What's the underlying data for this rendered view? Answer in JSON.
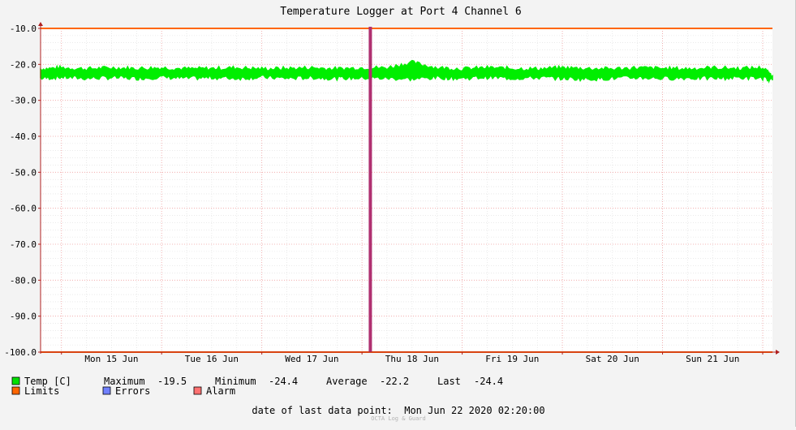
{
  "chart_data": {
    "type": "line",
    "title": "Temperature Logger at Port 4 Channel 6",
    "ylim": [
      -100,
      -10
    ],
    "yticks": [
      -10,
      -20,
      -30,
      -40,
      -50,
      -60,
      -70,
      -80,
      -90,
      -100
    ],
    "ytick_labels": [
      "-10.0",
      "-20.0",
      "-30.0",
      "-40.0",
      "-50.0",
      "-60.0",
      "-70.0",
      "-80.0",
      "-90.0",
      "-100.0"
    ],
    "x_start": "2020-06-14 19:00",
    "x_end": "2020-06-22 02:20",
    "xticks": [
      {
        "label": "Mon 15 Jun",
        "t": "2020-06-15 12:00"
      },
      {
        "label": "Tue 16 Jun",
        "t": "2020-06-16 12:00"
      },
      {
        "label": "Wed 17 Jun",
        "t": "2020-06-17 12:00"
      },
      {
        "label": "Thu 18 Jun",
        "t": "2020-06-18 12:00"
      },
      {
        "label": "Fri 19 Jun",
        "t": "2020-06-19 12:00"
      },
      {
        "label": "Sat 20 Jun",
        "t": "2020-06-20 12:00"
      },
      {
        "label": "Sun 21 Jun",
        "t": "2020-06-21 12:00"
      }
    ],
    "grid": true,
    "series": [
      {
        "name": "Temp [C]",
        "color": "#00ee00",
        "kind": "band",
        "x": [
          "2020-06-14 19:00",
          "2020-06-15 00:00",
          "2020-06-15 06:00",
          "2020-06-15 12:00",
          "2020-06-15 18:00",
          "2020-06-16 00:00",
          "2020-06-16 06:00",
          "2020-06-16 12:00",
          "2020-06-16 18:00",
          "2020-06-17 00:00",
          "2020-06-17 06:00",
          "2020-06-17 12:00",
          "2020-06-17 18:00",
          "2020-06-18 00:00",
          "2020-06-18 06:00",
          "2020-06-18 12:00",
          "2020-06-18 18:00",
          "2020-06-19 00:00",
          "2020-06-19 06:00",
          "2020-06-19 12:00",
          "2020-06-19 18:00",
          "2020-06-20 00:00",
          "2020-06-20 06:00",
          "2020-06-20 12:00",
          "2020-06-20 18:00",
          "2020-06-21 00:00",
          "2020-06-21 06:00",
          "2020-06-21 12:00",
          "2020-06-21 18:00",
          "2020-06-22 00:00",
          "2020-06-22 02:20"
        ],
        "high": [
          -21.3,
          -21.0,
          -21.3,
          -21.0,
          -21.2,
          -21.0,
          -21.3,
          -21.2,
          -21.0,
          -21.3,
          -21.2,
          -21.0,
          -21.3,
          -21.0,
          -21.0,
          -19.5,
          -21.0,
          -21.3,
          -21.0,
          -21.2,
          -21.3,
          -21.0,
          -21.2,
          -21.3,
          -21.0,
          -21.2,
          -21.3,
          -21.0,
          -21.2,
          -21.0,
          -23.2
        ],
        "low": [
          -23.8,
          -23.5,
          -23.8,
          -23.6,
          -23.8,
          -23.5,
          -23.8,
          -23.6,
          -23.8,
          -23.5,
          -23.8,
          -23.6,
          -23.8,
          -23.7,
          -23.8,
          -24.0,
          -23.6,
          -23.8,
          -23.5,
          -23.8,
          -23.6,
          -23.8,
          -24.0,
          -23.8,
          -23.6,
          -23.8,
          -23.7,
          -23.8,
          -23.6,
          -23.8,
          -24.4
        ]
      },
      {
        "name": "Limits",
        "color": "#ff6600",
        "kind": "hline",
        "values": [
          -10,
          -100
        ]
      },
      {
        "name": "Alarm",
        "color": "#b03070",
        "kind": "vbar",
        "x": [
          "2020-06-18 02:00"
        ]
      }
    ],
    "legend": [
      {
        "label": "Temp [C]",
        "color": "#00e000"
      },
      {
        "label": "Limits",
        "color": "#ff6600"
      },
      {
        "label": "Errors",
        "color": "#7080ff"
      },
      {
        "label": "Alarm",
        "color": "#ff7070"
      }
    ],
    "stats": {
      "max_label": "Maximum",
      "max": "-19.5",
      "min_label": "Minimum",
      "min": "-24.4",
      "avg_label": "Average",
      "avg": "-22.2",
      "last_label": "Last",
      "last": "-24.4"
    },
    "footer": "date of last data point:  Mon Jun 22 2020 02:20:00",
    "watermark": "OCTA Log & Guard"
  }
}
